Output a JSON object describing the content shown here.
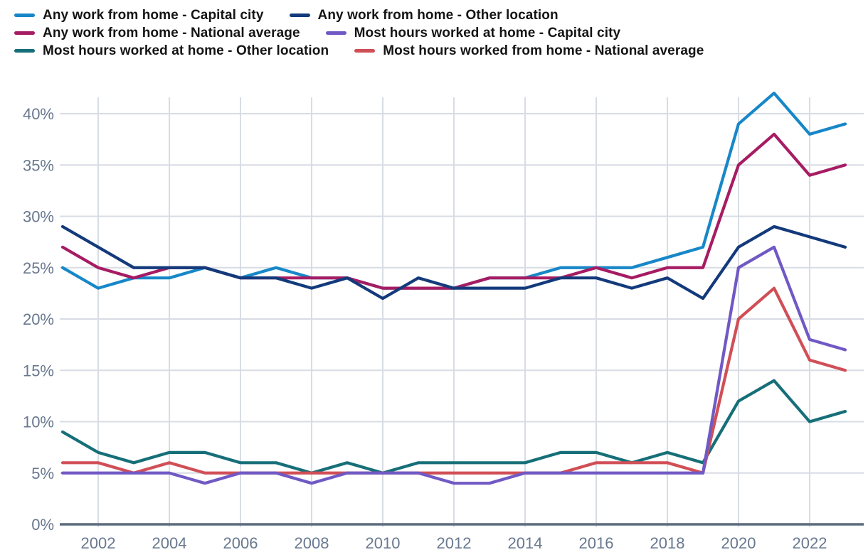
{
  "chart_data": {
    "type": "line",
    "title": "",
    "x": [
      2001,
      2002,
      2003,
      2004,
      2005,
      2006,
      2007,
      2008,
      2009,
      2010,
      2011,
      2012,
      2013,
      2014,
      2015,
      2016,
      2017,
      2018,
      2019,
      2020,
      2021,
      2022,
      2023
    ],
    "series": [
      {
        "name": "Any work from home - Capital city",
        "color": "#1787c8",
        "values": [
          25,
          23,
          24,
          24,
          25,
          24,
          25,
          24,
          24,
          23,
          23,
          23,
          24,
          24,
          25,
          25,
          25,
          26,
          27,
          39,
          42,
          38,
          39
        ]
      },
      {
        "name": "Any work from home - Other location",
        "color": "#133a7b",
        "values": [
          29,
          27,
          25,
          25,
          25,
          24,
          24,
          23,
          24,
          22,
          24,
          23,
          23,
          23,
          24,
          24,
          23,
          24,
          22,
          27,
          29,
          28,
          27
        ]
      },
      {
        "name": "Any work from home - National average",
        "color": "#a61c63",
        "values": [
          27,
          25,
          24,
          25,
          25,
          24,
          24,
          24,
          24,
          23,
          23,
          23,
          24,
          24,
          24,
          25,
          24,
          25,
          25,
          35,
          38,
          34,
          35
        ]
      },
      {
        "name": "Most hours worked at home - Capital city",
        "color": "#7059c4",
        "values": [
          5,
          5,
          5,
          5,
          4,
          5,
          5,
          4,
          5,
          5,
          5,
          4,
          4,
          5,
          5,
          5,
          5,
          5,
          5,
          25,
          27,
          18,
          17
        ]
      },
      {
        "name": "Most hours worked at home - Other location",
        "color": "#166f78",
        "values": [
          9,
          7,
          6,
          7,
          7,
          6,
          6,
          5,
          6,
          5,
          6,
          6,
          6,
          6,
          7,
          7,
          6,
          7,
          6,
          12,
          14,
          10,
          11
        ]
      },
      {
        "name": "Most hours worked from home - National average",
        "color": "#d04f56",
        "values": [
          6,
          6,
          5,
          6,
          5,
          5,
          5,
          5,
          5,
          5,
          5,
          5,
          5,
          5,
          5,
          6,
          6,
          6,
          5,
          20,
          23,
          16,
          15
        ]
      }
    ],
    "ylabel": "",
    "xlabel": "",
    "ylim": [
      0,
      42
    ],
    "yticks": [
      0,
      5,
      10,
      15,
      20,
      25,
      30,
      35,
      40
    ],
    "ytick_labels": [
      "0%",
      "5%",
      "10%",
      "15%",
      "20%",
      "25%",
      "30%",
      "35%",
      "40%"
    ],
    "xticks": [
      2002,
      2004,
      2006,
      2008,
      2010,
      2012,
      2014,
      2016,
      2018,
      2020,
      2022
    ],
    "xtick_labels": [
      "2002",
      "2004",
      "2006",
      "2008",
      "2010",
      "2012",
      "2014",
      "2016",
      "2018",
      "2020",
      "2022"
    ],
    "grid": true,
    "legend_position": "top"
  },
  "colors": {
    "grid_line": "#d8dce4",
    "axis_line": "#5c6b7e",
    "tick_label": "#68788f",
    "legend_text": "#141414",
    "background": "#ffffff"
  }
}
